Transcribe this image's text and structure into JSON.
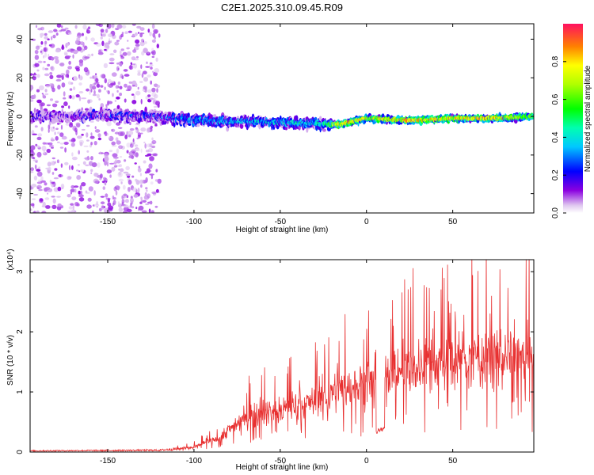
{
  "title": "C2E1.2025.310.09.45.R09",
  "chart_data": [
    {
      "type": "heatmap",
      "xlabel": "Height of straight line (km)",
      "ylabel": "Frequency (Hz)",
      "xlim": [
        -195,
        97
      ],
      "ylim": [
        -50,
        48
      ],
      "xticks": [
        -150,
        -100,
        -50,
        0,
        50
      ],
      "yticks": [
        -40,
        -20,
        0,
        20,
        40
      ],
      "colorbar": {
        "label": "Normalized spectral amplitude",
        "range": [
          0,
          1
        ],
        "ticks": [
          0.0,
          0.2,
          0.4,
          0.6,
          0.8
        ]
      },
      "trace": [
        {
          "x": -170,
          "y": 0,
          "amp": 0.1
        },
        {
          "x": -160,
          "y": 1,
          "amp": 0.15
        },
        {
          "x": -120,
          "y": 0,
          "amp": 0.2
        },
        {
          "x": -100,
          "y": -2,
          "amp": 0.3
        },
        {
          "x": -50,
          "y": -3,
          "amp": 0.35
        },
        {
          "x": -25,
          "y": -4,
          "amp": 0.4
        },
        {
          "x": -15,
          "y": -4,
          "amp": 0.85
        },
        {
          "x": 0,
          "y": -1,
          "amp": 0.7
        },
        {
          "x": 25,
          "y": -2,
          "amp": 0.8
        },
        {
          "x": 50,
          "y": -1,
          "amp": 0.75
        },
        {
          "x": 75,
          "y": -1,
          "amp": 0.85
        },
        {
          "x": 95,
          "y": 0,
          "amp": 0.6
        }
      ]
    },
    {
      "type": "line",
      "xlabel": "Height of straight line (km)",
      "ylabel": "SNR (10 * v/v)",
      "scale_label": "(x10⁴)",
      "xlim": [
        -195,
        97
      ],
      "ylim": [
        0,
        3.2
      ],
      "xticks": [
        -150,
        -100,
        -50,
        0,
        50
      ],
      "yticks": [
        0,
        1,
        2,
        3
      ],
      "series": [
        {
          "name": "SNR",
          "color": "#e83030",
          "envelope": [
            {
              "x": -195,
              "y": 0.02
            },
            {
              "x": -120,
              "y": 0.03
            },
            {
              "x": -100,
              "y": 0.08
            },
            {
              "x": -85,
              "y": 0.25
            },
            {
              "x": -70,
              "y": 0.6
            },
            {
              "x": -50,
              "y": 0.7
            },
            {
              "x": -30,
              "y": 0.85
            },
            {
              "x": -15,
              "y": 1.05
            },
            {
              "x": 0,
              "y": 1.15
            },
            {
              "x": 10,
              "y": 1.3
            },
            {
              "x": 25,
              "y": 1.4
            },
            {
              "x": 50,
              "y": 1.5
            },
            {
              "x": 75,
              "y": 1.6
            },
            {
              "x": 97,
              "y": 1.55
            }
          ]
        }
      ]
    }
  ]
}
